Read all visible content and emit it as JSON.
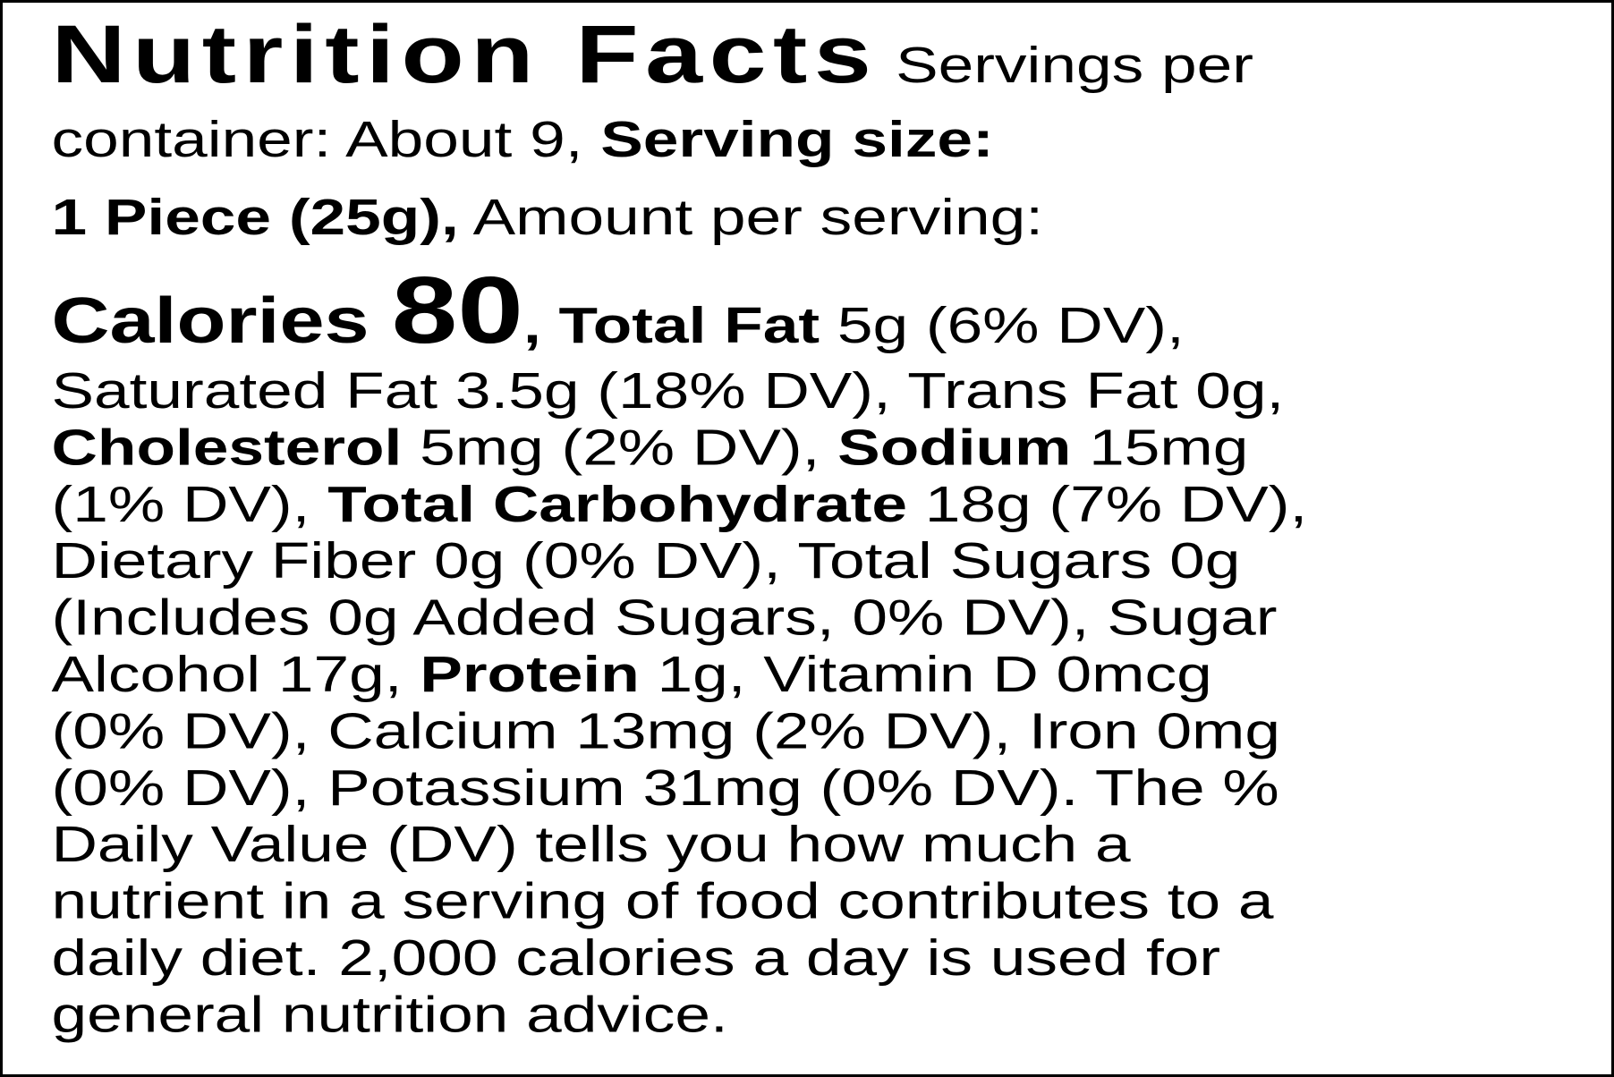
{
  "lines": [
    [
      {
        "text": "Nutrition Facts",
        "style": "title"
      },
      {
        "text": " Servings per",
        "style": "regular"
      }
    ],
    [
      {
        "text": "container: About 9, ",
        "style": "regular"
      },
      {
        "text": "Serving size:",
        "style": "bold"
      }
    ],
    [
      {
        "text": "1 Piece (25g),",
        "style": "bold"
      },
      {
        "text": " Amount per serving:",
        "style": "regular"
      }
    ],
    [
      {
        "text": "Calories ",
        "style": "calories"
      },
      {
        "text": "80",
        "style": "big"
      },
      {
        "text": ", Total Fat",
        "style": "bold"
      },
      {
        "text": " 5g (6% DV),",
        "style": "regular"
      }
    ],
    [
      {
        "text": "Saturated Fat 3.5g (18% DV), Trans Fat 0g,",
        "style": "regular"
      }
    ],
    [
      {
        "text": "Cholesterol",
        "style": "bold"
      },
      {
        "text": " 5mg (2% DV), ",
        "style": "regular"
      },
      {
        "text": "Sodium",
        "style": "bold"
      },
      {
        "text": " 15mg",
        "style": "regular"
      }
    ],
    [
      {
        "text": "(1% DV), ",
        "style": "regular"
      },
      {
        "text": "Total Carbohydrate",
        "style": "bold"
      },
      {
        "text": " 18g (7% DV),",
        "style": "regular"
      }
    ],
    [
      {
        "text": "Dietary Fiber 0g (0% DV), Total Sugars 0g",
        "style": "regular"
      }
    ],
    [
      {
        "text": "(Includes 0g Added Sugars, 0% DV), Sugar",
        "style": "regular"
      }
    ],
    [
      {
        "text": "Alcohol 17g, ",
        "style": "regular"
      },
      {
        "text": "Protein",
        "style": "bold"
      },
      {
        "text": " 1g, Vitamin D 0mcg",
        "style": "regular"
      }
    ],
    [
      {
        "text": "(0% DV), Calcium 13mg (2% DV), Iron 0mg",
        "style": "regular"
      }
    ],
    [
      {
        "text": "(0% DV), Potassium 31mg (0% DV). The %",
        "style": "regular"
      }
    ],
    [
      {
        "text": "Daily Value (DV) tells you how much a",
        "style": "regular"
      }
    ],
    [
      {
        "text": "nutrient in a serving of food contributes to a",
        "style": "regular"
      }
    ],
    [
      {
        "text": "daily diet. 2,000 calories a day is used for",
        "style": "regular"
      }
    ],
    [
      {
        "text": "general nutrition advice.",
        "style": "regular"
      }
    ]
  ]
}
